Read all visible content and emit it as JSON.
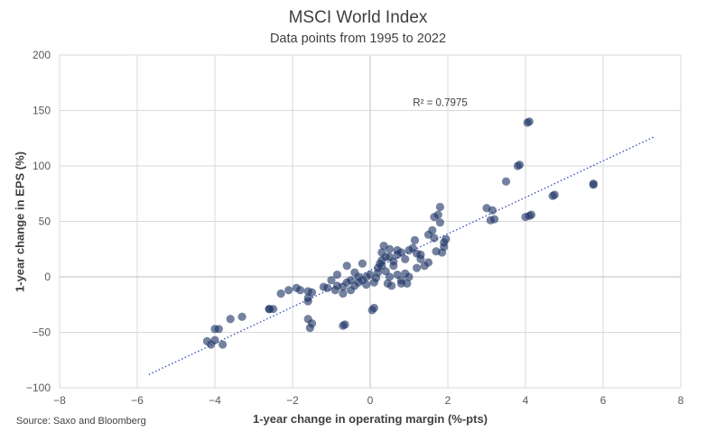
{
  "chart_data": {
    "type": "scatter",
    "title": "MSCI World Index",
    "subtitle": "Data points from 1995 to 2022",
    "xlabel": "1-year change in operating margin (%-pts)",
    "ylabel": "1-year change in EPS (%)",
    "xlim": [
      -8,
      8
    ],
    "ylim": [
      -100,
      200
    ],
    "xticks": [
      -8,
      -6,
      -4,
      -2,
      0,
      2,
      4,
      6,
      8
    ],
    "yticks": [
      -100,
      -50,
      0,
      50,
      100,
      150,
      200
    ],
    "xtick_labels": [
      "−8",
      "−6",
      "−4",
      "−2",
      "0",
      "2",
      "4",
      "6",
      "8"
    ],
    "ytick_labels": [
      "−100",
      "−50",
      "0",
      "50",
      "100",
      "150",
      "200"
    ],
    "grid": true,
    "point_color": "#1f3566",
    "trendline": {
      "style": "dotted",
      "color": "#3b56b8",
      "x": [
        -5.7,
        7.3
      ],
      "y": [
        -88,
        126
      ]
    },
    "annotation": {
      "text": "R² = 0.7975",
      "x": 1.1,
      "y": 154
    },
    "points": [
      [
        -4.2,
        -58
      ],
      [
        -4.1,
        -61
      ],
      [
        -4.0,
        -57
      ],
      [
        -4.0,
        -47
      ],
      [
        -3.9,
        -47
      ],
      [
        -3.8,
        -61
      ],
      [
        -3.6,
        -38
      ],
      [
        -3.3,
        -36
      ],
      [
        -2.6,
        -29
      ],
      [
        -2.6,
        -29
      ],
      [
        -2.5,
        -29
      ],
      [
        -2.3,
        -15
      ],
      [
        -2.1,
        -12
      ],
      [
        -1.9,
        -10
      ],
      [
        -1.8,
        -12
      ],
      [
        -1.6,
        -13
      ],
      [
        -1.6,
        -19
      ],
      [
        -1.6,
        -22
      ],
      [
        -1.6,
        -38
      ],
      [
        -1.55,
        -46
      ],
      [
        -1.5,
        -42
      ],
      [
        -1.5,
        -14
      ],
      [
        -1.2,
        -9
      ],
      [
        -1.0,
        -3
      ],
      [
        -0.85,
        2
      ],
      [
        -0.85,
        -8
      ],
      [
        -0.7,
        -9
      ],
      [
        -0.7,
        -15
      ],
      [
        -0.7,
        -44
      ],
      [
        -0.65,
        -43
      ],
      [
        -0.6,
        -5
      ],
      [
        -0.5,
        -12
      ],
      [
        -0.5,
        -3
      ],
      [
        -0.4,
        -8
      ],
      [
        -0.3,
        -5
      ],
      [
        -0.3,
        0
      ],
      [
        -0.2,
        -3
      ],
      [
        -0.1,
        0
      ],
      [
        -0.1,
        -7
      ],
      [
        0.0,
        2
      ],
      [
        0.05,
        -30
      ],
      [
        0.1,
        -28
      ],
      [
        0.1,
        -5
      ],
      [
        0.15,
        -1
      ],
      [
        0.2,
        4
      ],
      [
        0.2,
        8
      ],
      [
        0.25,
        12
      ],
      [
        0.3,
        15
      ],
      [
        0.3,
        22
      ],
      [
        0.35,
        28
      ],
      [
        0.4,
        5
      ],
      [
        0.45,
        -6
      ],
      [
        0.5,
        0
      ],
      [
        0.5,
        18
      ],
      [
        0.5,
        25
      ],
      [
        0.55,
        -8
      ],
      [
        0.6,
        10
      ],
      [
        0.7,
        20
      ],
      [
        0.7,
        24
      ],
      [
        0.8,
        -3
      ],
      [
        0.8,
        -6
      ],
      [
        0.9,
        3
      ],
      [
        0.95,
        -6
      ],
      [
        1.0,
        0
      ],
      [
        1.0,
        24
      ],
      [
        1.1,
        26
      ],
      [
        1.15,
        33
      ],
      [
        1.2,
        21
      ],
      [
        1.3,
        16
      ],
      [
        1.3,
        20
      ],
      [
        1.4,
        10
      ],
      [
        1.5,
        38
      ],
      [
        1.6,
        42
      ],
      [
        1.65,
        35
      ],
      [
        1.65,
        54
      ],
      [
        1.7,
        23
      ],
      [
        1.75,
        56
      ],
      [
        1.8,
        63
      ],
      [
        1.8,
        49
      ],
      [
        1.85,
        22
      ],
      [
        1.9,
        31
      ],
      [
        1.95,
        34
      ],
      [
        1.5,
        13
      ],
      [
        1.2,
        8
      ],
      [
        0.8,
        22
      ],
      [
        0.6,
        14
      ],
      [
        0.4,
        18
      ],
      [
        0.3,
        10
      ],
      [
        -0.9,
        -12
      ],
      [
        -1.1,
        -10
      ],
      [
        -0.4,
        4
      ],
      [
        0.7,
        2
      ],
      [
        1.9,
        27
      ],
      [
        -0.2,
        12
      ],
      [
        -0.6,
        10
      ],
      [
        0.9,
        16
      ],
      [
        3.0,
        62
      ],
      [
        3.1,
        51
      ],
      [
        3.15,
        60
      ],
      [
        3.2,
        52
      ],
      [
        3.5,
        86
      ],
      [
        3.8,
        100
      ],
      [
        3.85,
        101
      ],
      [
        4.0,
        54
      ],
      [
        4.05,
        139
      ],
      [
        4.1,
        140
      ],
      [
        4.1,
        55
      ],
      [
        4.15,
        56
      ],
      [
        4.7,
        73
      ],
      [
        4.75,
        74
      ],
      [
        5.75,
        83
      ],
      [
        5.75,
        84
      ]
    ]
  },
  "footer": {
    "source": "Source: Saxo and Bloomberg"
  }
}
